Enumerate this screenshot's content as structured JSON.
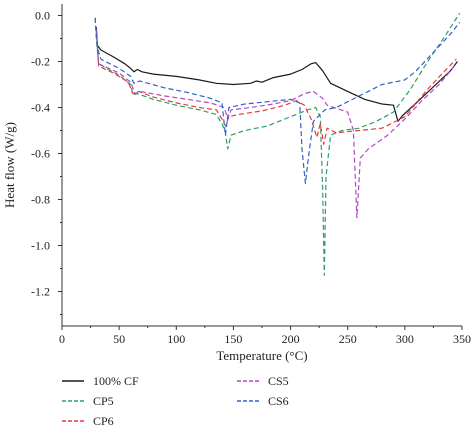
{
  "chart_data": {
    "type": "line",
    "title": "",
    "xlabel": "Temperature (°C)",
    "ylabel": "Heat flow (W/g)",
    "xlim": [
      0,
      350
    ],
    "ylim": [
      -1.35,
      0.05
    ],
    "xticks": [
      0,
      50,
      100,
      150,
      200,
      250,
      300,
      350
    ],
    "yticks": [
      0.0,
      -0.2,
      -0.4,
      -0.6,
      -0.8,
      -1.0,
      -1.2
    ],
    "ytick_labels": [
      "0.0",
      "-0.2",
      "-0.4",
      "-0.6",
      "-0.8",
      "-1.0",
      "-1.2"
    ],
    "grid": false,
    "legend_position": "bottom",
    "series": [
      {
        "name": "100% CF",
        "color": "#1a1a1a",
        "style": "solid",
        "legend_col": 0,
        "legend_row": 0,
        "points": [
          [
            30,
            -0.05
          ],
          [
            31,
            -0.13
          ],
          [
            34,
            -0.15
          ],
          [
            45,
            -0.18
          ],
          [
            55,
            -0.21
          ],
          [
            60,
            -0.23
          ],
          [
            63,
            -0.245
          ],
          [
            66,
            -0.235
          ],
          [
            70,
            -0.245
          ],
          [
            80,
            -0.255
          ],
          [
            100,
            -0.265
          ],
          [
            120,
            -0.28
          ],
          [
            135,
            -0.295
          ],
          [
            150,
            -0.3
          ],
          [
            165,
            -0.295
          ],
          [
            170,
            -0.285
          ],
          [
            175,
            -0.29
          ],
          [
            185,
            -0.27
          ],
          [
            200,
            -0.255
          ],
          [
            210,
            -0.235
          ],
          [
            218,
            -0.21
          ],
          [
            222,
            -0.205
          ],
          [
            228,
            -0.24
          ],
          [
            235,
            -0.295
          ],
          [
            250,
            -0.33
          ],
          [
            265,
            -0.365
          ],
          [
            280,
            -0.385
          ],
          [
            290,
            -0.39
          ],
          [
            294,
            -0.46
          ],
          [
            298,
            -0.435
          ],
          [
            310,
            -0.38
          ],
          [
            325,
            -0.31
          ],
          [
            340,
            -0.24
          ],
          [
            346,
            -0.2
          ]
        ]
      },
      {
        "name": "CP5",
        "color": "#2e9e6a",
        "style": "dashed",
        "legend_col": 0,
        "legend_row": 1,
        "points": [
          [
            29,
            -0.01
          ],
          [
            30,
            -0.1
          ],
          [
            32,
            -0.21
          ],
          [
            50,
            -0.26
          ],
          [
            60,
            -0.3
          ],
          [
            62,
            -0.345
          ],
          [
            66,
            -0.34
          ],
          [
            80,
            -0.365
          ],
          [
            100,
            -0.39
          ],
          [
            120,
            -0.41
          ],
          [
            135,
            -0.43
          ],
          [
            140,
            -0.47
          ],
          [
            143,
            -0.51
          ],
          [
            145,
            -0.58
          ],
          [
            148,
            -0.52
          ],
          [
            160,
            -0.5
          ],
          [
            180,
            -0.48
          ],
          [
            200,
            -0.44
          ],
          [
            215,
            -0.41
          ],
          [
            222,
            -0.4
          ],
          [
            226,
            -0.44
          ],
          [
            228,
            -0.75
          ],
          [
            229.5,
            -1.13
          ],
          [
            231,
            -0.7
          ],
          [
            235,
            -0.52
          ],
          [
            245,
            -0.5
          ],
          [
            260,
            -0.49
          ],
          [
            275,
            -0.46
          ],
          [
            290,
            -0.42
          ],
          [
            305,
            -0.32
          ],
          [
            320,
            -0.2
          ],
          [
            335,
            -0.09
          ],
          [
            348,
            0.01
          ]
        ]
      },
      {
        "name": "CP6",
        "color": "#e83a3a",
        "style": "dashed",
        "legend_col": 0,
        "legend_row": 2,
        "points": [
          [
            30,
            -0.06
          ],
          [
            32,
            -0.22
          ],
          [
            45,
            -0.25
          ],
          [
            58,
            -0.29
          ],
          [
            62,
            -0.34
          ],
          [
            67,
            -0.33
          ],
          [
            80,
            -0.355
          ],
          [
            100,
            -0.38
          ],
          [
            120,
            -0.4
          ],
          [
            135,
            -0.41
          ],
          [
            140,
            -0.45
          ],
          [
            143,
            -0.48
          ],
          [
            146,
            -0.44
          ],
          [
            155,
            -0.43
          ],
          [
            175,
            -0.415
          ],
          [
            195,
            -0.39
          ],
          [
            205,
            -0.37
          ],
          [
            212,
            -0.39
          ],
          [
            218,
            -0.45
          ],
          [
            223,
            -0.53
          ],
          [
            226,
            -0.47
          ],
          [
            229,
            -0.56
          ],
          [
            232,
            -0.49
          ],
          [
            240,
            -0.51
          ],
          [
            260,
            -0.5
          ],
          [
            280,
            -0.49
          ],
          [
            300,
            -0.44
          ],
          [
            320,
            -0.32
          ],
          [
            335,
            -0.24
          ],
          [
            345,
            -0.19
          ]
        ]
      },
      {
        "name": "CS5",
        "color": "#b049c6",
        "style": "dashed",
        "legend_col": 1,
        "legend_row": 0,
        "points": [
          [
            30,
            -0.07
          ],
          [
            32,
            -0.21
          ],
          [
            50,
            -0.25
          ],
          [
            60,
            -0.29
          ],
          [
            64,
            -0.34
          ],
          [
            68,
            -0.33
          ],
          [
            90,
            -0.35
          ],
          [
            110,
            -0.365
          ],
          [
            130,
            -0.38
          ],
          [
            142,
            -0.4
          ],
          [
            145,
            -0.45
          ],
          [
            148,
            -0.41
          ],
          [
            165,
            -0.4
          ],
          [
            185,
            -0.385
          ],
          [
            200,
            -0.37
          ],
          [
            212,
            -0.34
          ],
          [
            220,
            -0.33
          ],
          [
            228,
            -0.36
          ],
          [
            232,
            -0.39
          ],
          [
            238,
            -0.4
          ],
          [
            250,
            -0.42
          ],
          [
            255,
            -0.5
          ],
          [
            258,
            -0.88
          ],
          [
            261,
            -0.62
          ],
          [
            268,
            -0.58
          ],
          [
            285,
            -0.52
          ],
          [
            300,
            -0.45
          ],
          [
            315,
            -0.37
          ],
          [
            330,
            -0.3
          ],
          [
            345,
            -0.21
          ]
        ]
      },
      {
        "name": "CS6",
        "color": "#2f64c8",
        "style": "dashed",
        "legend_col": 1,
        "legend_row": 1,
        "points": [
          [
            29,
            -0.01
          ],
          [
            31,
            -0.14
          ],
          [
            34,
            -0.19
          ],
          [
            50,
            -0.23
          ],
          [
            60,
            -0.265
          ],
          [
            63,
            -0.295
          ],
          [
            68,
            -0.285
          ],
          [
            90,
            -0.315
          ],
          [
            110,
            -0.335
          ],
          [
            130,
            -0.36
          ],
          [
            140,
            -0.38
          ],
          [
            143,
            -0.52
          ],
          [
            146,
            -0.4
          ],
          [
            160,
            -0.385
          ],
          [
            180,
            -0.375
          ],
          [
            200,
            -0.365
          ],
          [
            208,
            -0.38
          ],
          [
            210,
            -0.58
          ],
          [
            213,
            -0.73
          ],
          [
            216,
            -0.6
          ],
          [
            220,
            -0.46
          ],
          [
            230,
            -0.41
          ],
          [
            240,
            -0.4
          ],
          [
            260,
            -0.35
          ],
          [
            280,
            -0.3
          ],
          [
            300,
            -0.28
          ],
          [
            310,
            -0.24
          ],
          [
            325,
            -0.16
          ],
          [
            340,
            -0.08
          ],
          [
            348,
            -0.03
          ]
        ]
      }
    ]
  }
}
